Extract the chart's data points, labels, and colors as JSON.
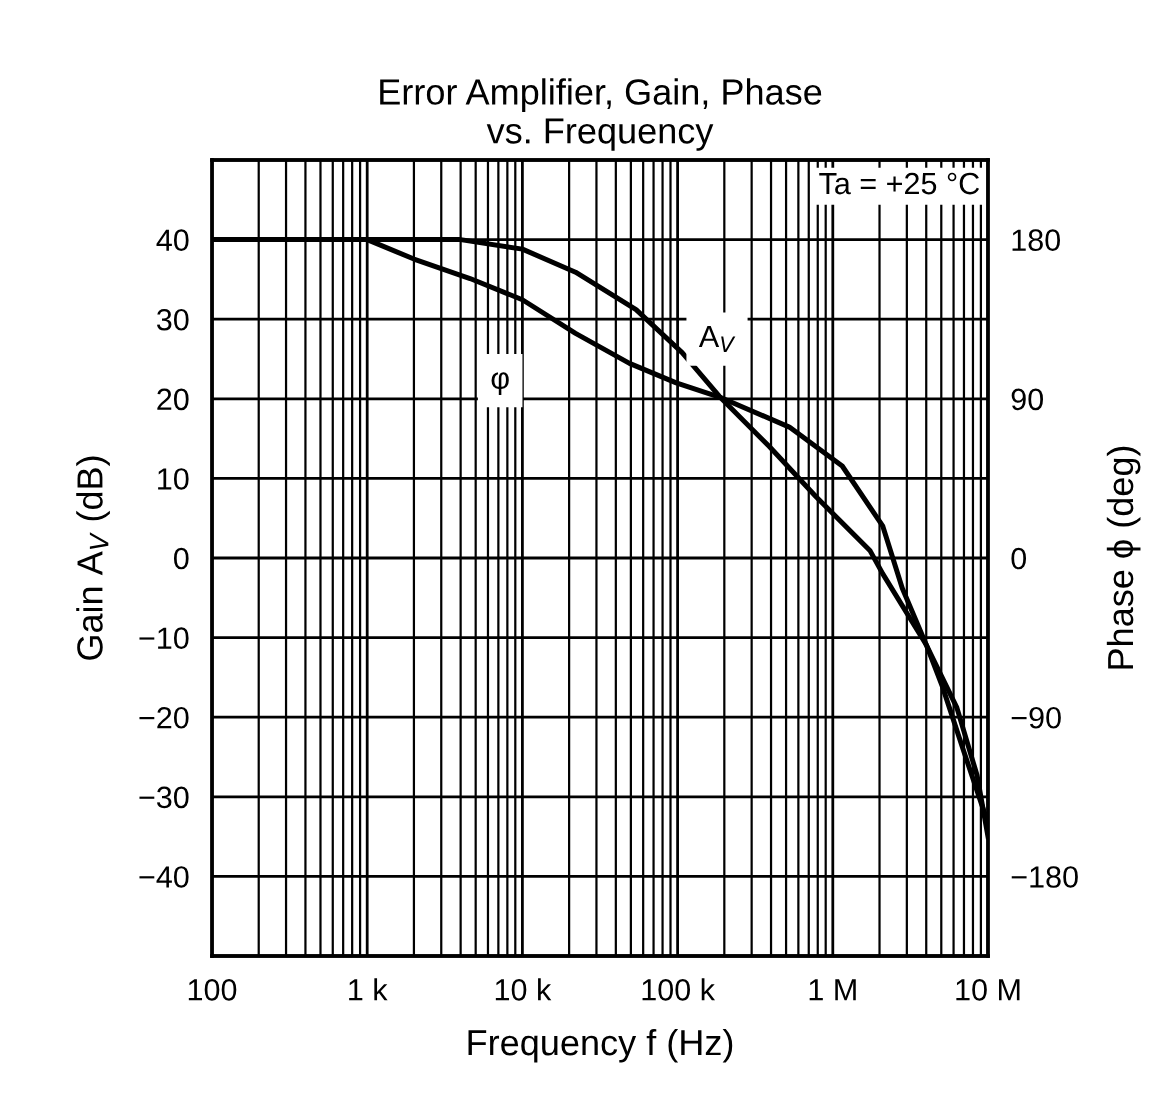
{
  "chart_data": {
    "type": "line",
    "title": "Error Amplifier, Gain, Phase\nvs. Frequency",
    "xlabel": "Frequency f (Hz)",
    "ylabel": "Gain A$_{V}$ (dB)",
    "y2label": "Phase ϕ (deg)",
    "annotations": [
      "Ta = +25 °C"
    ],
    "log": "x",
    "grid": true,
    "legend": false,
    "line_style": "solid",
    "marker": "none",
    "xlim": [
      100,
      10000000
    ],
    "xticks": [
      {
        "value": 100,
        "label": "100"
      },
      {
        "value": 1000,
        "label": "1 k"
      },
      {
        "value": 10000,
        "label": "10 k"
      },
      {
        "value": 100000,
        "label": "100 k"
      },
      {
        "value": 1000000,
        "label": "1 M"
      },
      {
        "value": 10000000,
        "label": "10 M"
      }
    ],
    "ylim": [
      -50,
      50
    ],
    "yticks": [
      {
        "value": 40,
        "label": "40"
      },
      {
        "value": 30,
        "label": "30"
      },
      {
        "value": 20,
        "label": "20"
      },
      {
        "value": 10,
        "label": "10"
      },
      {
        "value": 0,
        "label": "0"
      },
      {
        "value": -10,
        "label": "−10"
      },
      {
        "value": -20,
        "label": "−20"
      },
      {
        "value": -30,
        "label": "−30"
      },
      {
        "value": -40,
        "label": "−40"
      }
    ],
    "y2lim": [
      -225,
      225
    ],
    "y2ticks": [
      {
        "value": 180,
        "label": "180"
      },
      {
        "value": 90,
        "label": "90"
      },
      {
        "value": 0,
        "label": "0"
      },
      {
        "value": -90,
        "label": "−90"
      },
      {
        "value": -180,
        "label": "−180"
      }
    ],
    "series": [
      {
        "name": "A$_{V}$",
        "color": "#000000",
        "x": [
          100,
          4000,
          10000,
          22000,
          54000,
          107000,
          186000,
          390000,
          780000,
          1740000,
          2100000,
          4000000,
          6300000,
          8500000,
          10000000
        ],
        "values": [
          40,
          40,
          38.8,
          35.9,
          31.2,
          25.8,
          20.3,
          14.0,
          7.7,
          0.9,
          -2.0,
          -10.9,
          -18.8,
          -27.3,
          -35
        ]
      },
      {
        "name": "φ",
        "color": "#000000",
        "axis": "y2",
        "x": [
          100,
          1000,
          2000,
          4600,
          10000,
          22000,
          49000,
          98000,
          186000,
          525000,
          1150000,
          2100000,
          2800000,
          4000000,
          5100000,
          6900000,
          10000000
        ],
        "values": [
          180,
          180,
          169,
          158,
          146,
          127,
          110,
          99,
          91,
          74,
          52,
          18,
          -17,
          -49,
          -73,
          -108,
          -150
        ]
      }
    ]
  }
}
